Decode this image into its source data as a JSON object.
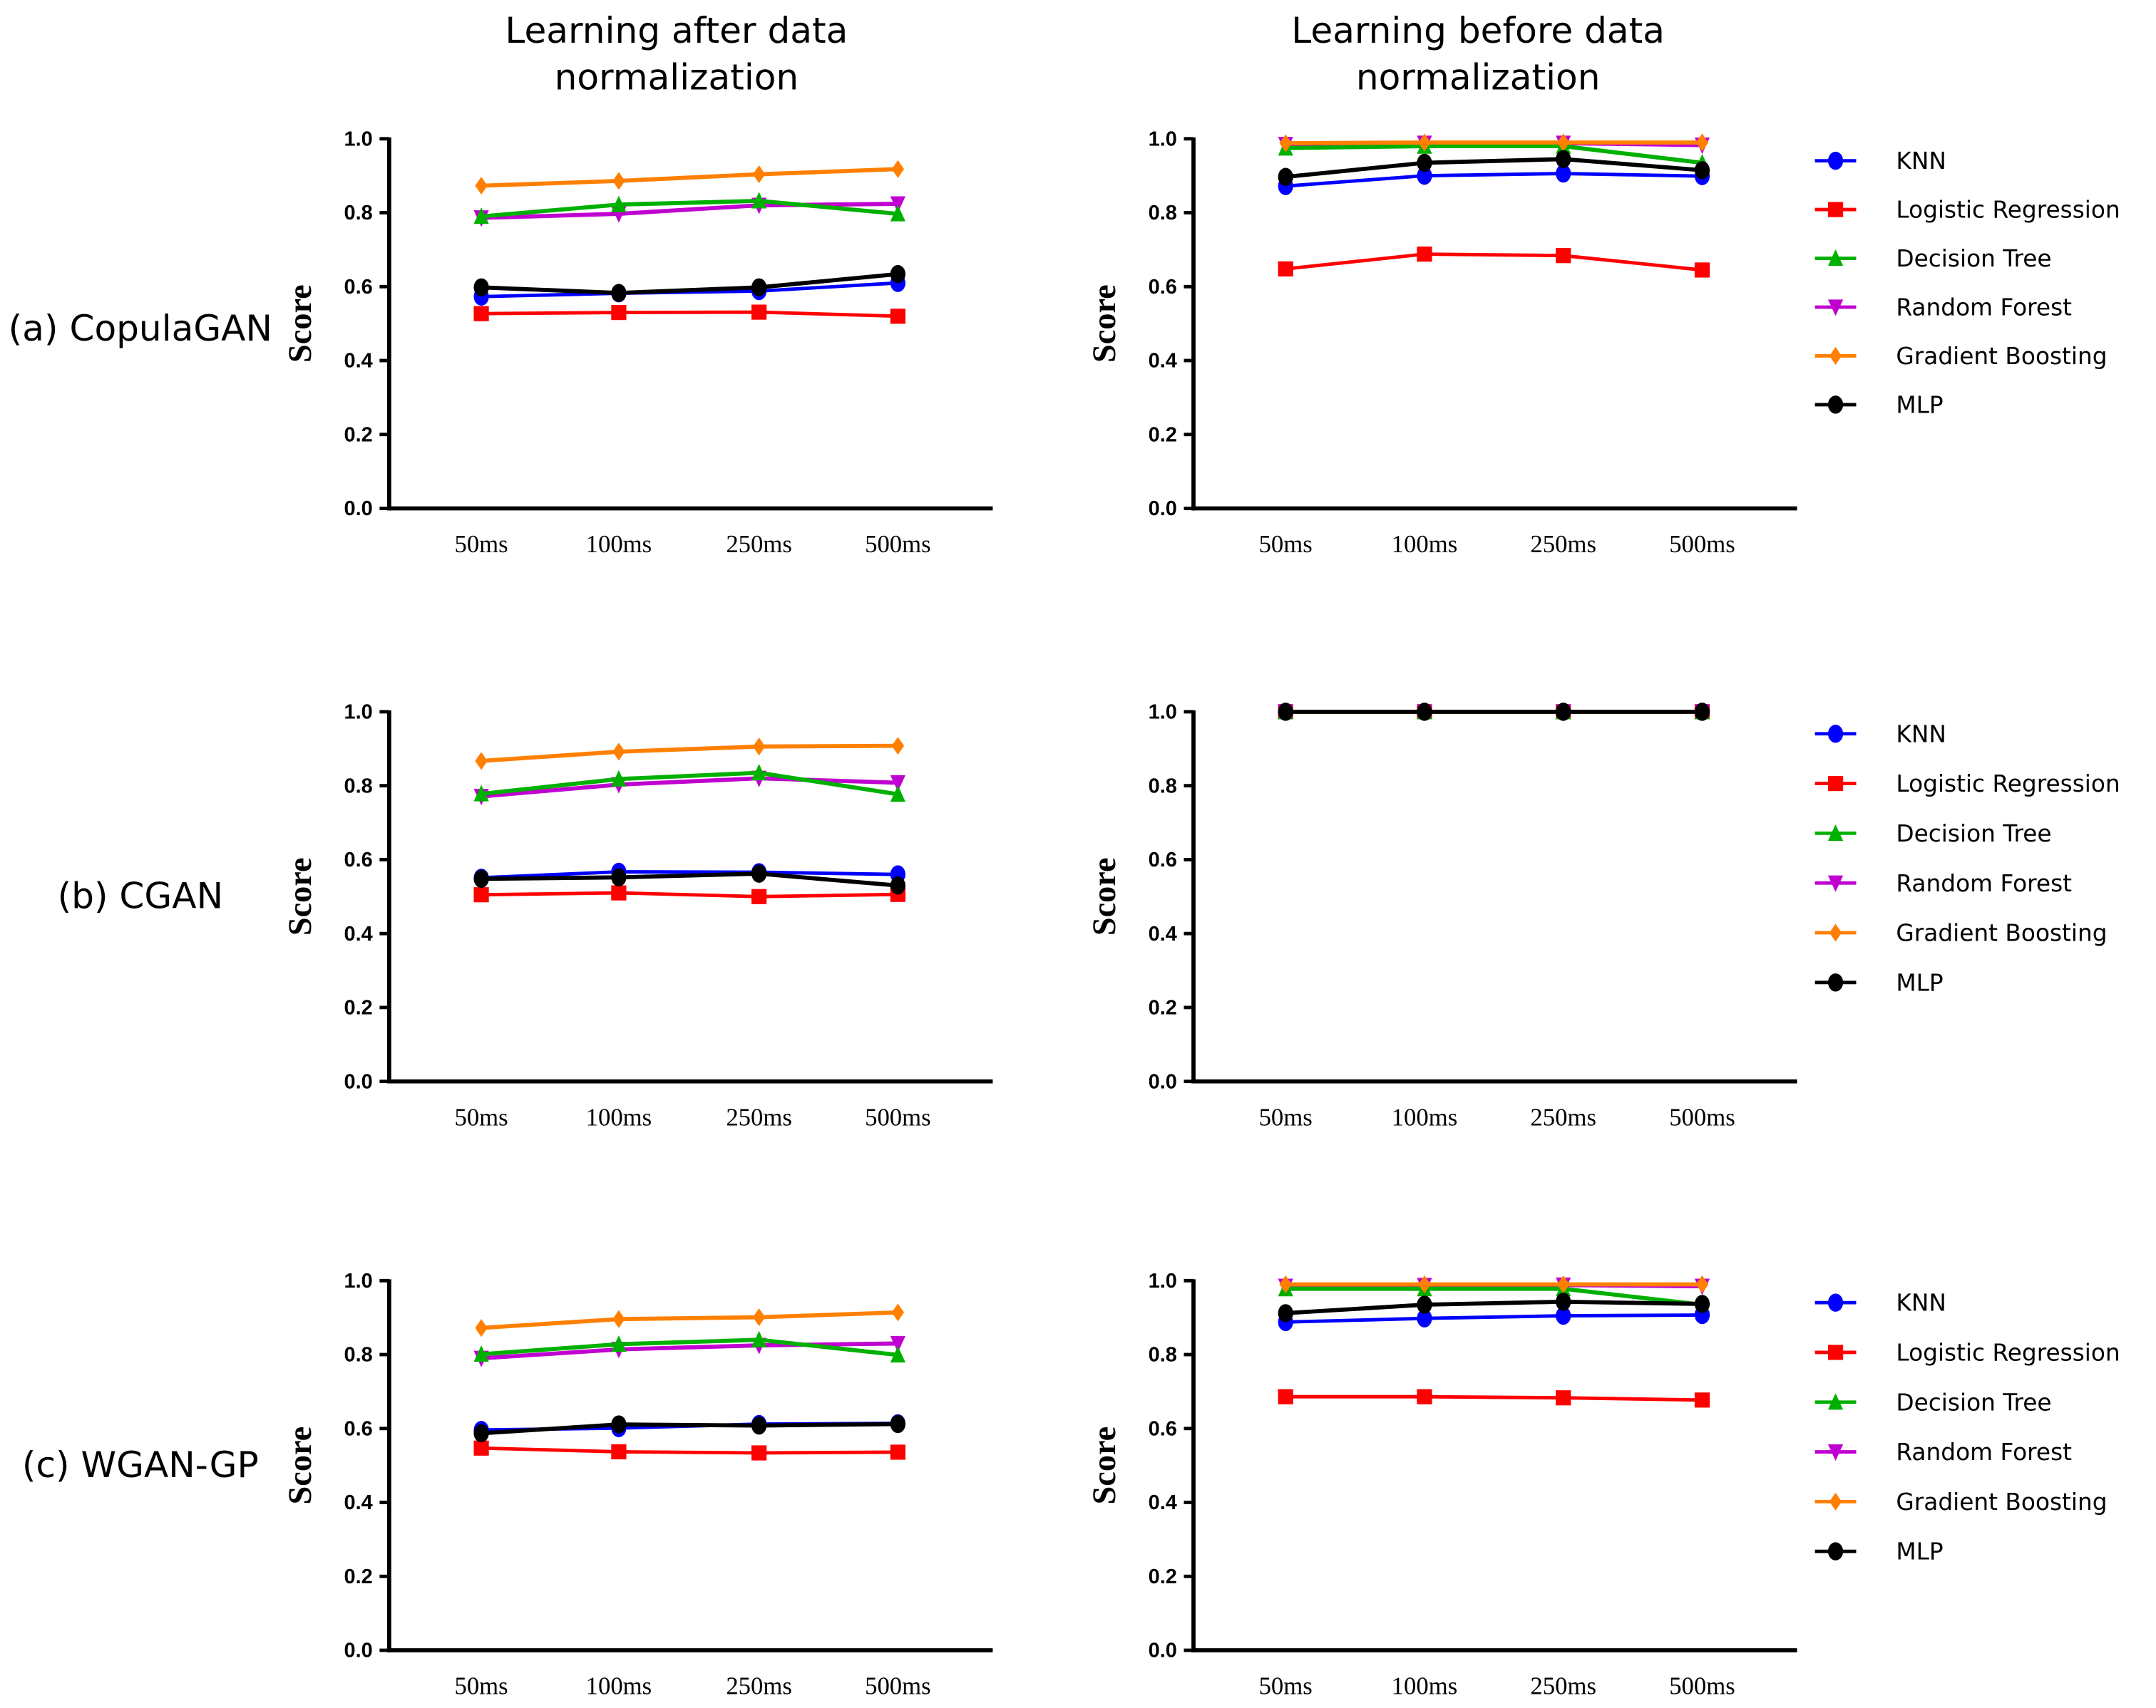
{
  "column_titles": [
    [
      "Learning after data",
      "normalization"
    ],
    [
      "Learning before data",
      "normalization"
    ]
  ],
  "row_labels": [
    "(a) CopulaGAN",
    "(b) CGAN",
    "(c) WGAN-GP"
  ],
  "chart_data": {
    "type": "line",
    "categories": [
      "50ms",
      "100ms",
      "250ms",
      "500ms"
    ],
    "ylabel": "Score",
    "ylim": [
      0,
      1
    ],
    "yticks": [
      "0.0",
      "0.2",
      "0.4",
      "0.6",
      "0.8",
      "1.0"
    ],
    "legend": [
      "KNN",
      "Logistic Regression",
      "Decision Tree",
      "Random Forest",
      "Gradient Boosting",
      "MLP"
    ],
    "legend_placement": "right",
    "series_style": [
      {
        "name": "KNN",
        "color": "#0000ff",
        "marker": "circle"
      },
      {
        "name": "Logistic Regression",
        "color": "#ff0000",
        "marker": "square"
      },
      {
        "name": "Decision Tree",
        "color": "#00b000",
        "marker": "triangle-up"
      },
      {
        "name": "Random Forest",
        "color": "#c000d0",
        "marker": "triangle-down"
      },
      {
        "name": "Gradient Boosting",
        "color": "#ff8000",
        "marker": "diamond"
      },
      {
        "name": "MLP",
        "color": "#000000",
        "marker": "circle"
      }
    ],
    "panels": [
      {
        "row": "(a) CopulaGAN",
        "column": "after",
        "series": [
          [
            0.573,
            0.582,
            0.588,
            0.61
          ],
          [
            0.527,
            0.53,
            0.531,
            0.52
          ],
          [
            0.79,
            0.822,
            0.832,
            0.797
          ],
          [
            0.786,
            0.797,
            0.82,
            0.824
          ],
          [
            0.873,
            0.886,
            0.904,
            0.918
          ],
          [
            0.598,
            0.583,
            0.598,
            0.634
          ]
        ]
      },
      {
        "row": "(a) CopulaGAN",
        "column": "before",
        "series": [
          [
            0.872,
            0.9,
            0.906,
            0.899
          ],
          [
            0.648,
            0.688,
            0.684,
            0.645
          ],
          [
            0.975,
            0.98,
            0.98,
            0.935
          ],
          [
            0.985,
            0.988,
            0.988,
            0.983
          ],
          [
            0.988,
            0.99,
            0.99,
            0.99
          ],
          [
            0.897,
            0.935,
            0.945,
            0.915
          ]
        ]
      },
      {
        "row": "(b) CGAN",
        "column": "after",
        "series": [
          [
            0.551,
            0.567,
            0.566,
            0.56
          ],
          [
            0.505,
            0.51,
            0.5,
            0.506
          ],
          [
            0.778,
            0.818,
            0.835,
            0.777
          ],
          [
            0.771,
            0.803,
            0.82,
            0.808
          ],
          [
            0.867,
            0.892,
            0.906,
            0.908
          ],
          [
            0.548,
            0.552,
            0.562,
            0.53
          ]
        ]
      },
      {
        "row": "(b) CGAN",
        "column": "before",
        "series": [
          [
            1,
            1,
            1,
            1
          ],
          [
            1,
            1,
            1,
            1
          ],
          [
            1,
            1,
            1,
            1
          ],
          [
            1,
            1,
            1,
            1
          ],
          [
            1,
            1,
            1,
            1
          ],
          [
            1,
            1,
            1,
            1
          ]
        ]
      },
      {
        "row": "(c) WGAN-GP",
        "column": "after",
        "series": [
          [
            0.596,
            0.601,
            0.612,
            0.614
          ],
          [
            0.547,
            0.537,
            0.534,
            0.536
          ],
          [
            0.801,
            0.828,
            0.84,
            0.799
          ],
          [
            0.79,
            0.814,
            0.825,
            0.83
          ],
          [
            0.872,
            0.896,
            0.901,
            0.914
          ],
          [
            0.587,
            0.611,
            0.608,
            0.612
          ]
        ]
      },
      {
        "row": "(c) WGAN-GP",
        "column": "before",
        "series": [
          [
            0.888,
            0.898,
            0.905,
            0.907
          ],
          [
            0.686,
            0.686,
            0.683,
            0.677
          ],
          [
            0.978,
            0.978,
            0.978,
            0.935
          ],
          [
            0.985,
            0.987,
            0.988,
            0.985
          ],
          [
            0.99,
            0.99,
            0.99,
            0.99
          ],
          [
            0.912,
            0.935,
            0.943,
            0.937
          ]
        ]
      }
    ]
  }
}
